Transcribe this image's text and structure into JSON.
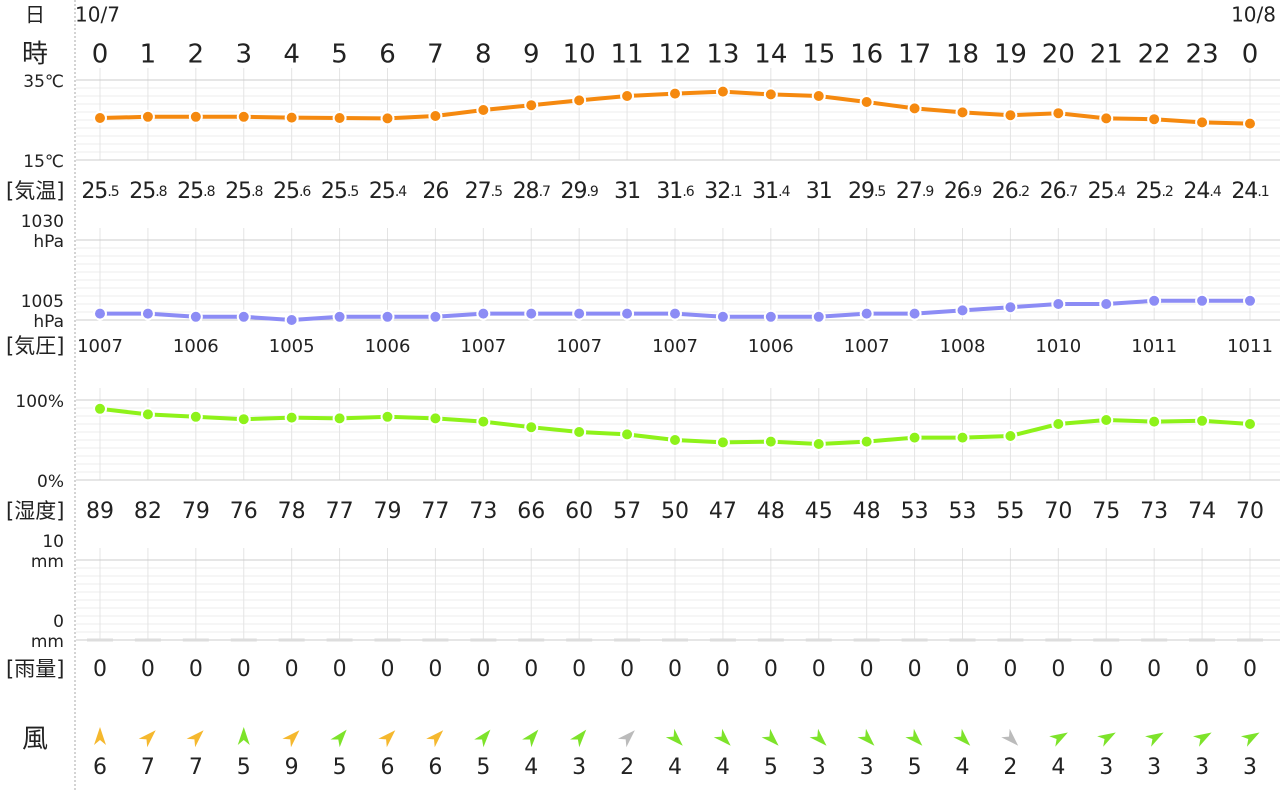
{
  "header": {
    "day_label": "日",
    "dates": [
      "10/7",
      "10/8"
    ],
    "hour_label": "時",
    "hours": [
      0,
      1,
      2,
      3,
      4,
      5,
      6,
      7,
      8,
      9,
      10,
      11,
      12,
      13,
      14,
      15,
      16,
      17,
      18,
      19,
      20,
      21,
      22,
      23,
      0
    ]
  },
  "chart_data": [
    {
      "type": "line",
      "label": "[気温]",
      "color": "#f5890f",
      "ylim": [
        15,
        35
      ],
      "yticks": [
        {
          "value": 15,
          "label": "15℃"
        },
        {
          "value": 35,
          "label": "35℃"
        }
      ],
      "values": [
        25.5,
        25.8,
        25.8,
        25.8,
        25.6,
        25.5,
        25.4,
        26,
        27.5,
        28.7,
        29.9,
        31,
        31.6,
        32.1,
        31.4,
        31,
        29.5,
        27.9,
        26.9,
        26.2,
        26.7,
        25.4,
        25.2,
        24.4,
        24.1
      ]
    },
    {
      "type": "line",
      "label": "[気圧]",
      "color": "#8c8cf5",
      "ylim": [
        1005,
        1030
      ],
      "yticks": [
        {
          "value": 1005,
          "label": "1005 hPa"
        },
        {
          "value": 1030,
          "label": "1030 hPa"
        }
      ],
      "values": [
        1007,
        1007,
        1006,
        1006,
        1005,
        1006,
        1006,
        1006,
        1007,
        1007,
        1007,
        1007,
        1007,
        1006,
        1006,
        1006,
        1007,
        1007,
        1008,
        1009,
        1010,
        1010,
        1011,
        1011,
        1011
      ]
    },
    {
      "type": "line",
      "label": "[湿度]",
      "color": "#8ef21a",
      "ylim": [
        0,
        100
      ],
      "yticks": [
        {
          "value": 0,
          "label": "0%"
        },
        {
          "value": 100,
          "label": "100%"
        }
      ],
      "values": [
        89,
        82,
        79,
        76,
        78,
        77,
        79,
        77,
        73,
        66,
        60,
        57,
        50,
        47,
        48,
        45,
        48,
        53,
        53,
        55,
        70,
        75,
        73,
        74,
        70
      ]
    },
    {
      "type": "bar",
      "label": "[雨量]",
      "color": "#dddddd",
      "ylim": [
        0,
        10
      ],
      "yticks": [
        {
          "value": 0,
          "label": "0 mm"
        },
        {
          "value": 10,
          "label": "10 mm"
        }
      ],
      "values": [
        0,
        0,
        0,
        0,
        0,
        0,
        0,
        0,
        0,
        0,
        0,
        0,
        0,
        0,
        0,
        0,
        0,
        0,
        0,
        0,
        0,
        0,
        0,
        0,
        0
      ]
    }
  ],
  "wind": {
    "label": "風",
    "values": [
      6,
      7,
      7,
      5,
      9,
      5,
      6,
      6,
      5,
      4,
      3,
      2,
      4,
      4,
      5,
      3,
      3,
      5,
      4,
      2,
      4,
      3,
      3,
      3,
      3
    ],
    "directions": [
      0,
      45,
      45,
      0,
      45,
      40,
      45,
      45,
      40,
      40,
      40,
      45,
      135,
      135,
      135,
      135,
      135,
      135,
      135,
      135,
      60,
      60,
      60,
      60,
      60
    ],
    "colors": [
      "#f5b82e",
      "#f5b82e",
      "#f5b82e",
      "#7de32a",
      "#f5b82e",
      "#7de32a",
      "#f5b82e",
      "#f5b82e",
      "#7de32a",
      "#7de32a",
      "#7de32a",
      "#bbbbbb",
      "#7de32a",
      "#7de32a",
      "#7de32a",
      "#7de32a",
      "#7de32a",
      "#7de32a",
      "#7de32a",
      "#bbbbbb",
      "#7de32a",
      "#7de32a",
      "#7de32a",
      "#7de32a",
      "#7de32a"
    ]
  }
}
